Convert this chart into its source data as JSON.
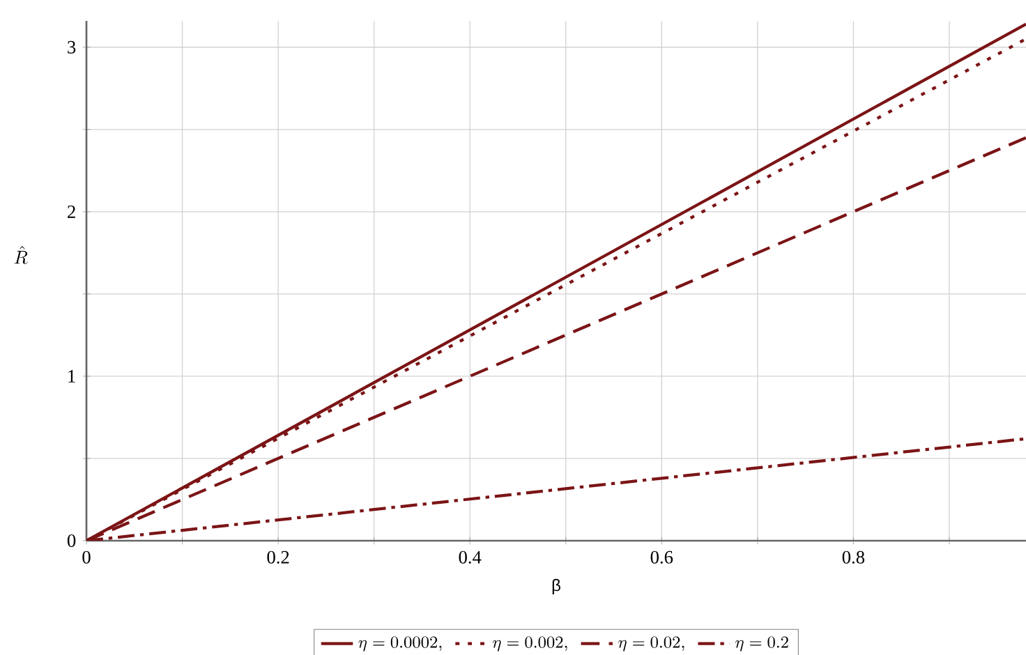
{
  "chart_data": {
    "type": "line",
    "xlabel": "β",
    "ylabel": "\\hat{R}",
    "x": [
      0,
      0.98
    ],
    "series": [
      {
        "name": "\\eta = 0.0002,",
        "color": "#7b1416",
        "values": [
          0,
          3.14
        ],
        "line_style": "solid"
      },
      {
        "name": "\\eta = 0.002,",
        "color": "#7b1416",
        "values": [
          0,
          3.05
        ],
        "line_style": "dotted"
      },
      {
        "name": "\\eta = 0.02,",
        "color": "#7b1416",
        "values": [
          0,
          2.45
        ],
        "line_style": "dashed"
      },
      {
        "name": "\\eta = 0.2",
        "color": "#7b1416",
        "values": [
          0,
          0.62
        ],
        "line_style": "dashdot"
      }
    ],
    "xlim": [
      0,
      0.98
    ],
    "ylim": [
      0,
      3.16
    ],
    "xticks": [
      0,
      {
        "value": 0.1,
        "label": null
      },
      0.2,
      {
        "value": 0.3,
        "label": null
      },
      0.4,
      {
        "value": 0.5,
        "label": null
      },
      0.6,
      {
        "value": 0.7,
        "label": null
      },
      0.8,
      {
        "value": 0.9,
        "label": null
      }
    ],
    "yticks": [
      0,
      {
        "value": 0.5,
        "label": null
      },
      1,
      {
        "value": 1.5,
        "label": null
      },
      2,
      {
        "value": 2.5,
        "label": null
      },
      3
    ],
    "grid": true,
    "legend": "bottom"
  }
}
